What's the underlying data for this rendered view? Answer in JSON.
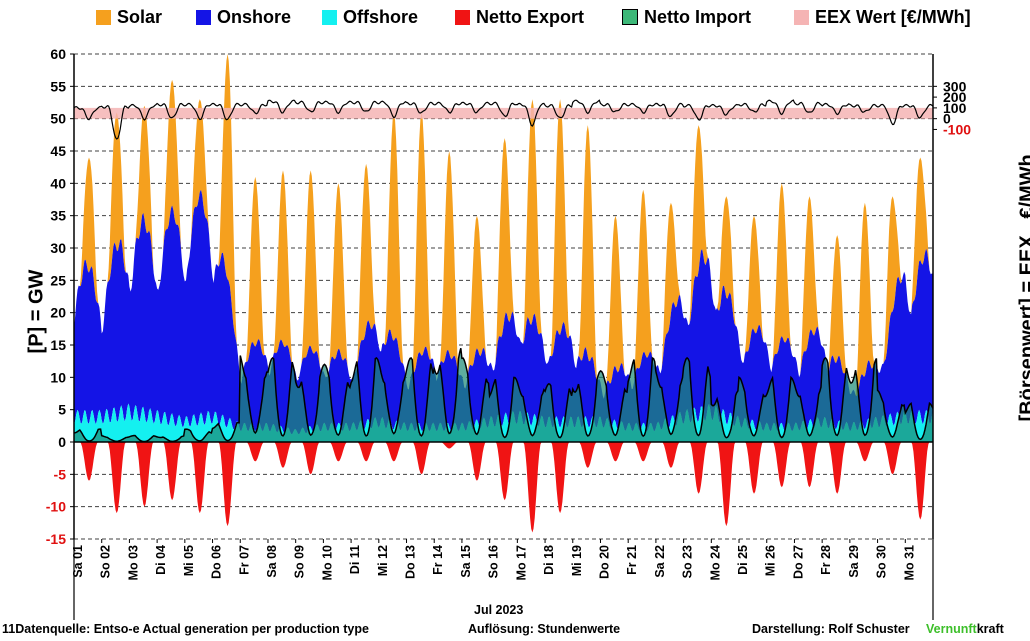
{
  "legend": [
    {
      "label": "Solar",
      "color": "#f5a01e"
    },
    {
      "label": "Onshore",
      "color": "#1414e6"
    },
    {
      "label": "Offshore",
      "color": "#14f0f0"
    },
    {
      "label": "Netto Export",
      "color": "#f01414"
    },
    {
      "label": "Netto Import",
      "color": "#3cb878"
    },
    {
      "label": "EEX Wert [€/MWh]",
      "color": "#f5b4b4"
    }
  ],
  "axes": {
    "ylabel_left": "[P] = GW",
    "ylabel_right": "[Börsenwert] = EEX   €/MWh",
    "left_ticks": [
      "60",
      "55",
      "50",
      "45",
      "40",
      "35",
      "30",
      "25",
      "20",
      "15",
      "10",
      "5",
      "0",
      "-5",
      "-10",
      "-15"
    ],
    "right_ticks": [
      "300",
      "200",
      "100",
      "0",
      "-100"
    ],
    "month": "Jul 2023"
  },
  "footer": {
    "source": "11Datenquelle: Entso-e  Actual generation per production type",
    "resolution": "Auflösung: Stundenwerte",
    "author": "Darstellung:  Rolf Schuster",
    "brand_green": "Vernunft",
    "brand_black": "kraft"
  },
  "chart_data": {
    "type": "area",
    "x": [
      "Sa 01",
      "So 02",
      "Mo 03",
      "Di 04",
      "Mi 05",
      "Do 06",
      "Fr 07",
      "Sa 08",
      "So 09",
      "Mo 10",
      "Di 11",
      "Mi 12",
      "Do 13",
      "Fr 14",
      "Sa 15",
      "So 16",
      "Mo 17",
      "Di 18",
      "Mi 19",
      "Do 20",
      "Fr 21",
      "Sa 22",
      "So 23",
      "Mo 24",
      "Di 25",
      "Mi 26",
      "Do 27",
      "Fr 28",
      "Sa 29",
      "So 30",
      "Mo 31"
    ],
    "y_left": {
      "label": "[P] = GW",
      "range": [
        -15,
        60
      ]
    },
    "y_right": {
      "label": "[Börsenwert] = EEX   €/MWh",
      "range": [
        -100,
        300
      ]
    },
    "series": [
      {
        "name": "Solar",
        "color": "#f5a01e",
        "peak_total_gw": [
          44,
          51,
          52,
          56,
          53,
          60,
          41,
          42,
          42,
          40,
          43,
          51,
          51,
          45,
          35,
          47,
          53,
          53,
          49,
          35,
          39,
          37,
          49,
          38,
          35,
          40,
          38,
          32,
          37,
          38,
          44
        ]
      },
      {
        "name": "Onshore",
        "color": "#1414e6",
        "daily_peak_gw": [
          25,
          22,
          30,
          30,
          34,
          35,
          12,
          14,
          13,
          12,
          11,
          18,
          10,
          13,
          10,
          12,
          18,
          14,
          15,
          7,
          10,
          12,
          21,
          26,
          15,
          15,
          13,
          15,
          7,
          10,
          25
        ]
      },
      {
        "name": "Offshore",
        "color": "#14f0f0",
        "daily_peak_gw": [
          5,
          5,
          6,
          5,
          4,
          5,
          3,
          3,
          2,
          3,
          3,
          4,
          3,
          3,
          3,
          4,
          5,
          4,
          4,
          4,
          3,
          3,
          5,
          6,
          4,
          3,
          3,
          4,
          3,
          4,
          5
        ]
      },
      {
        "name": "Netto Export",
        "color": "#f01414",
        "daily_min_gw": [
          -6,
          -11,
          -10,
          -9,
          -11,
          -13,
          -3,
          -4,
          -5,
          -3,
          -3,
          -3,
          -5,
          -1,
          -6,
          -9,
          -14,
          -11,
          -4,
          -3,
          -3,
          -4,
          -8,
          -13,
          -8,
          -7,
          -7,
          -8,
          -3,
          -5,
          -12
        ]
      },
      {
        "name": "Netto Import",
        "color": "#3cb878",
        "daily_peak_gw": [
          2,
          1,
          1,
          1,
          2,
          3,
          14,
          13,
          12,
          12,
          13,
          13,
          13,
          15,
          13,
          10,
          10,
          9,
          11,
          11,
          13,
          12,
          13,
          8,
          10,
          10,
          10,
          13,
          13,
          8,
          6
        ]
      },
      {
        "name": "EEX Wert [€/MWh]",
        "color": "#f5b4b4",
        "daily_min_eur": [
          0,
          -200,
          0,
          0,
          0,
          -10,
          50,
          60,
          60,
          60,
          60,
          20,
          50,
          60,
          60,
          20,
          -60,
          0,
          60,
          60,
          60,
          20,
          -10,
          40,
          60,
          50,
          50,
          50,
          60,
          -50,
          10
        ],
        "daily_max_eur": [
          100,
          110,
          120,
          130,
          130,
          130,
          130,
          160,
          150,
          150,
          150,
          150,
          140,
          140,
          140,
          140,
          130,
          120,
          160,
          130,
          130,
          130,
          120,
          120,
          130,
          160,
          140,
          130,
          120,
          120,
          120
        ]
      }
    ]
  }
}
